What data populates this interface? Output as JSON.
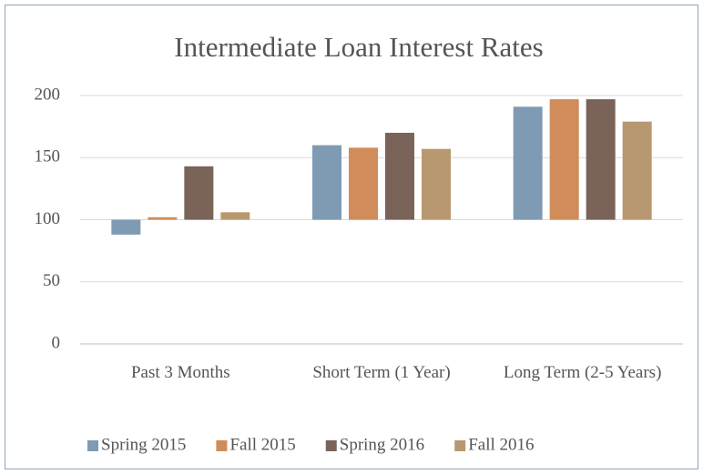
{
  "chart_data": {
    "type": "bar",
    "title": "Intermediate Loan Interest Rates",
    "categories": [
      "Past 3 Months",
      "Short Term (1 Year)",
      "Long Term (2-5 Years)"
    ],
    "series": [
      {
        "name": "Spring 2015",
        "color": "#7f9bb3",
        "values": [
          88,
          160,
          191
        ]
      },
      {
        "name": "Fall 2015",
        "color": "#d08c5a",
        "values": [
          102,
          158,
          197
        ]
      },
      {
        "name": "Spring 2016",
        "color": "#7a6358",
        "values": [
          143,
          170,
          197
        ]
      },
      {
        "name": "Fall 2016",
        "color": "#b89870",
        "values": [
          106,
          157,
          179
        ]
      }
    ],
    "ylim": [
      0,
      200
    ],
    "yticks": [
      0,
      50,
      100,
      150,
      200
    ],
    "base": 100,
    "grid": true,
    "legend": "bottom"
  }
}
